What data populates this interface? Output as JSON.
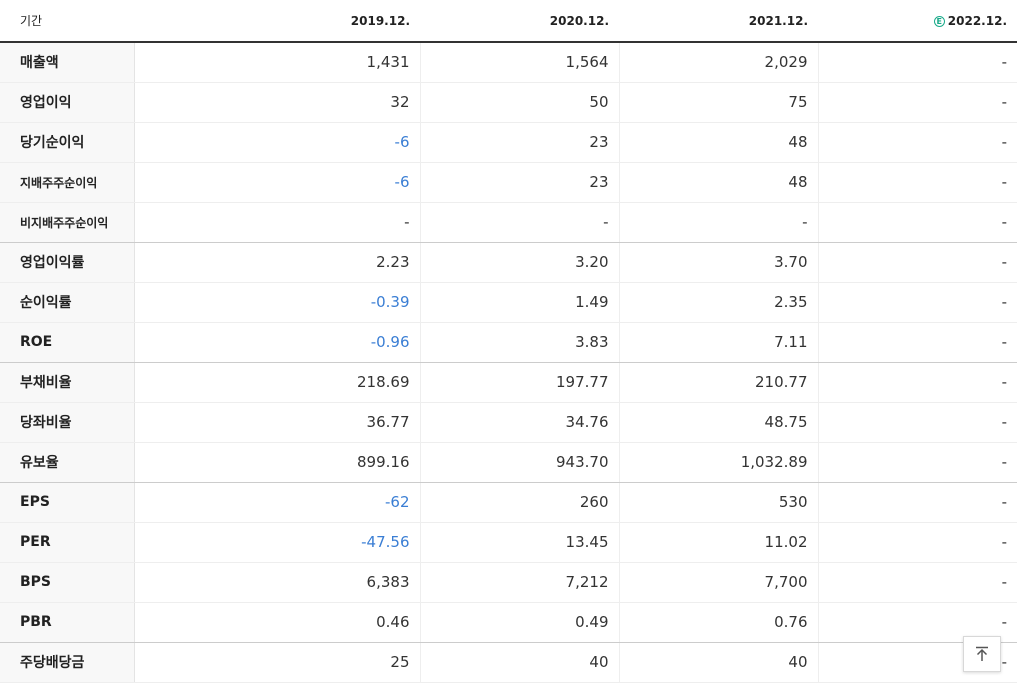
{
  "header": {
    "period_label": "기간",
    "periods": [
      "2019.12.",
      "2020.12.",
      "2021.12.",
      "2022.12."
    ],
    "estimate_mark": "E"
  },
  "rows": [
    {
      "label": "매출액",
      "values": [
        "1,431",
        "1,564",
        "2,029",
        "-"
      ]
    },
    {
      "label": "영업이익",
      "values": [
        "32",
        "50",
        "75",
        "-"
      ]
    },
    {
      "label": "당기순이익",
      "values": [
        "-6",
        "23",
        "48",
        "-"
      ]
    },
    {
      "label": "지배주주순이익",
      "values": [
        "-6",
        "23",
        "48",
        "-"
      ]
    },
    {
      "label": "비지배주주순이익",
      "values": [
        "-",
        "-",
        "-",
        "-"
      ]
    },
    {
      "label": "영업이익률",
      "values": [
        "2.23",
        "3.20",
        "3.70",
        "-"
      ]
    },
    {
      "label": "순이익률",
      "values": [
        "-0.39",
        "1.49",
        "2.35",
        "-"
      ]
    },
    {
      "label": "ROE",
      "values": [
        "-0.96",
        "3.83",
        "7.11",
        "-"
      ]
    },
    {
      "label": "부채비율",
      "values": [
        "218.69",
        "197.77",
        "210.77",
        "-"
      ]
    },
    {
      "label": "당좌비율",
      "values": [
        "36.77",
        "34.76",
        "48.75",
        "-"
      ]
    },
    {
      "label": "유보율",
      "values": [
        "899.16",
        "943.70",
        "1,032.89",
        "-"
      ]
    },
    {
      "label": "EPS",
      "values": [
        "-62",
        "260",
        "530",
        "-"
      ]
    },
    {
      "label": "PER",
      "values": [
        "-47.56",
        "13.45",
        "11.02",
        "-"
      ]
    },
    {
      "label": "BPS",
      "values": [
        "6,383",
        "7,212",
        "7,700",
        "-"
      ]
    },
    {
      "label": "PBR",
      "values": [
        "0.46",
        "0.49",
        "0.76",
        "-"
      ]
    },
    {
      "label": "주당배당금",
      "values": [
        "25",
        "40",
        "40",
        "-"
      ]
    }
  ],
  "colors": {
    "negative": "#3a7ed4",
    "estimate": "#1aaa8a"
  },
  "icons": {
    "top_button": "arrow-up-to-top-icon",
    "estimate": "estimate-circle-icon"
  }
}
